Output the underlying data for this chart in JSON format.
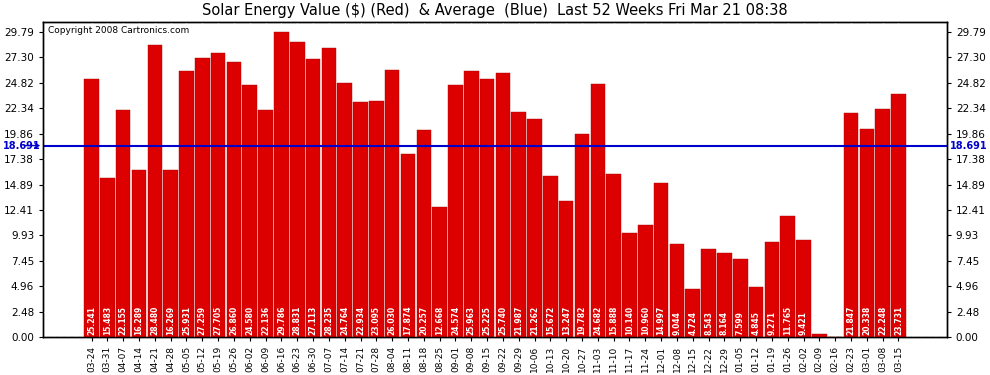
{
  "title": "Solar Energy Value ($) (Red)  & Average  (Blue)  Last 52 Weeks Fri Mar 21 08:38",
  "copyright": "Copyright 2008 Cartronics.com",
  "average": 18.691,
  "bar_color": "#dd0000",
  "avg_line_color": "#0000cc",
  "background_color": "#ffffff",
  "plot_bg_color": "#ffffff",
  "grid_color": "#999999",
  "yticks": [
    0.0,
    2.48,
    4.96,
    7.45,
    9.93,
    12.41,
    14.89,
    17.38,
    19.86,
    22.34,
    24.82,
    27.3,
    29.79
  ],
  "ylim": [
    0,
    30.79
  ],
  "categories": [
    "03-24",
    "03-31",
    "04-07",
    "04-14",
    "04-21",
    "04-28",
    "05-05",
    "05-12",
    "05-19",
    "05-26",
    "06-02",
    "06-09",
    "06-16",
    "06-23",
    "06-30",
    "07-07",
    "07-14",
    "07-21",
    "07-28",
    "08-04",
    "08-11",
    "08-18",
    "08-25",
    "09-01",
    "09-08",
    "09-15",
    "09-22",
    "09-29",
    "10-06",
    "10-13",
    "10-20",
    "10-27",
    "11-03",
    "11-10",
    "11-17",
    "11-24",
    "12-01",
    "12-08",
    "12-15",
    "12-22",
    "12-29",
    "01-05",
    "01-12",
    "01-19",
    "01-26",
    "02-02",
    "02-09",
    "02-16",
    "02-23",
    "03-01",
    "03-08",
    "03-15"
  ],
  "values": [
    25.241,
    15.483,
    22.155,
    16.289,
    28.48,
    16.269,
    25.931,
    27.259,
    27.705,
    26.86,
    24.58,
    22.136,
    29.786,
    28.831,
    27.113,
    28.235,
    24.764,
    22.934,
    23.095,
    26.03,
    17.874,
    20.257,
    12.668,
    24.574,
    25.963,
    25.225,
    25.74,
    21.987,
    21.262,
    15.672,
    13.247,
    19.782,
    24.682,
    15.888,
    10.14,
    10.96,
    14.997,
    9.044,
    4.724,
    8.543,
    8.164,
    7.599,
    4.845,
    9.271,
    11.765,
    9.421,
    0.317,
    0.0,
    21.847,
    20.338,
    22.248,
    23.731
  ]
}
